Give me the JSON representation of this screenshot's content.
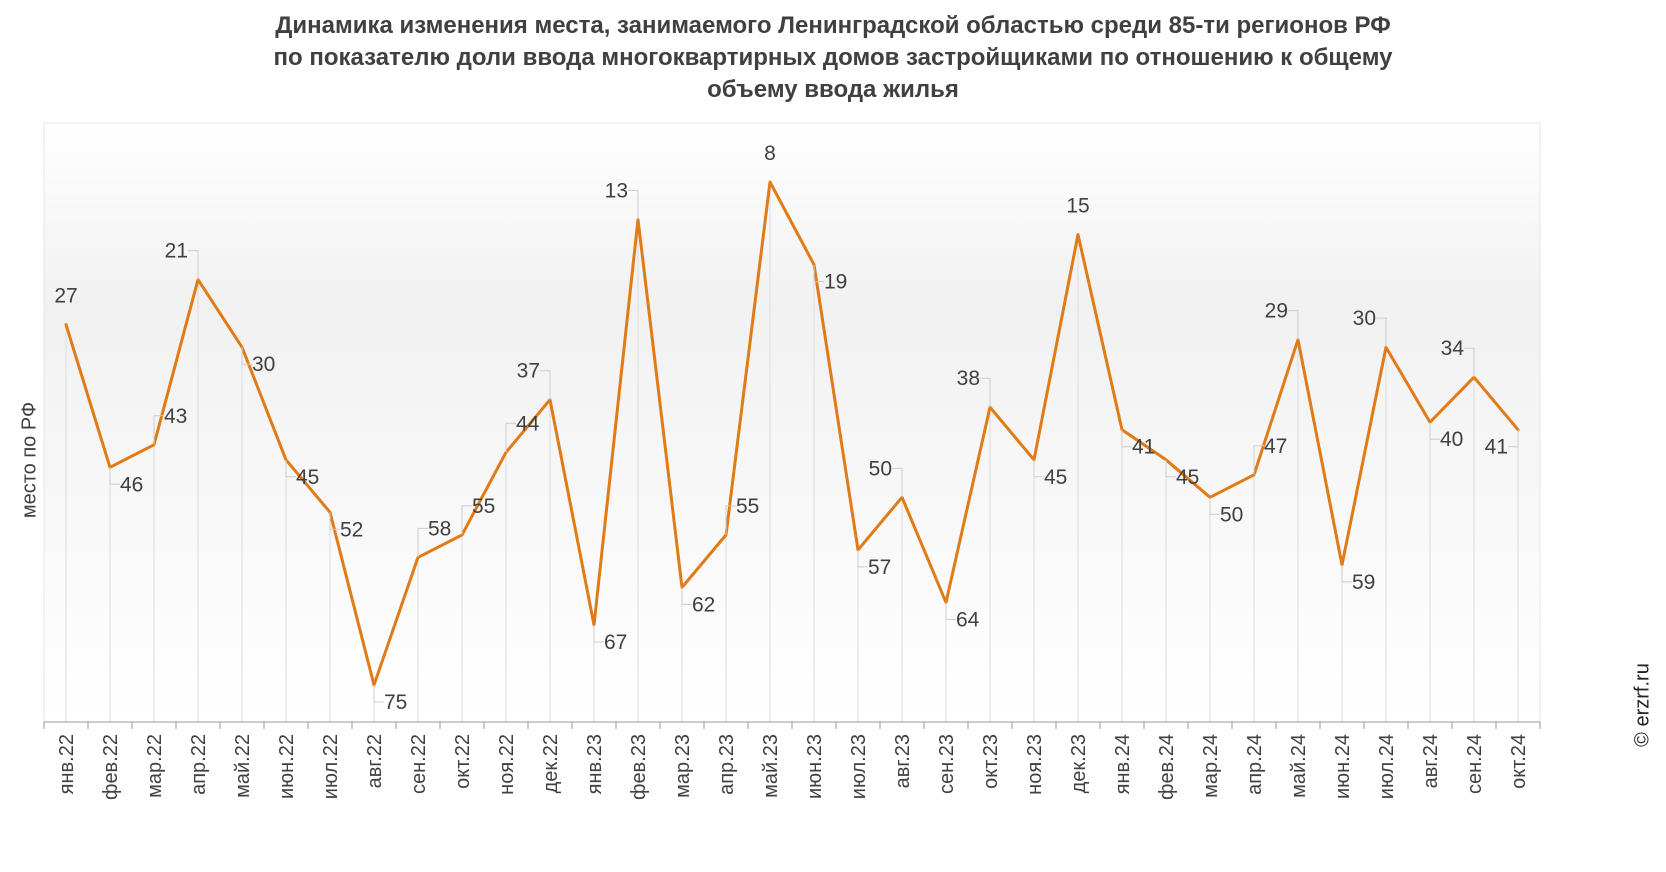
{
  "chart_data": {
    "type": "line",
    "title_lines": [
      "Динамика изменения места, занимаемого Ленинградской областью среди 85-ти регионов РФ",
      "по показателю доли ввода многоквартирных домов застройщиками по отношению к общему",
      "объему ввода жилья"
    ],
    "ylabel": "место по РФ",
    "xlabel": "",
    "y_inverted": true,
    "ylim": [
      0,
      85
    ],
    "grid": false,
    "categories": [
      "янв.22",
      "фев.22",
      "мар.22",
      "апр.22",
      "май.22",
      "июн.22",
      "июл.22",
      "авг.22",
      "сен.22",
      "окт.22",
      "ноя.22",
      "дек.22",
      "янв.23",
      "фев.23",
      "мар.23",
      "апр.23",
      "май.23",
      "июн.23",
      "июл.23",
      "авг.23",
      "сен.23",
      "окт.23",
      "ноя.23",
      "дек.23",
      "янв.24",
      "фев.24",
      "мар.24",
      "апр.24",
      "май.24",
      "июн.24",
      "июл.24",
      "авг.24",
      "сен.24",
      "окт.24"
    ],
    "series": [
      {
        "color": "#e07b16",
        "values": [
          27,
          46,
          43,
          21,
          30,
          45,
          52,
          75,
          58,
          55,
          44,
          37,
          67,
          13,
          62,
          55,
          8,
          19,
          57,
          50,
          64,
          38,
          45,
          15,
          41,
          45,
          50,
          47,
          29,
          59,
          30,
          40,
          34,
          41
        ]
      }
    ]
  },
  "credit": "© erzrf.ru",
  "colors": {
    "line": "#e07b16",
    "leader": "#cccccc",
    "axis": "#999999",
    "text": "#404040"
  }
}
